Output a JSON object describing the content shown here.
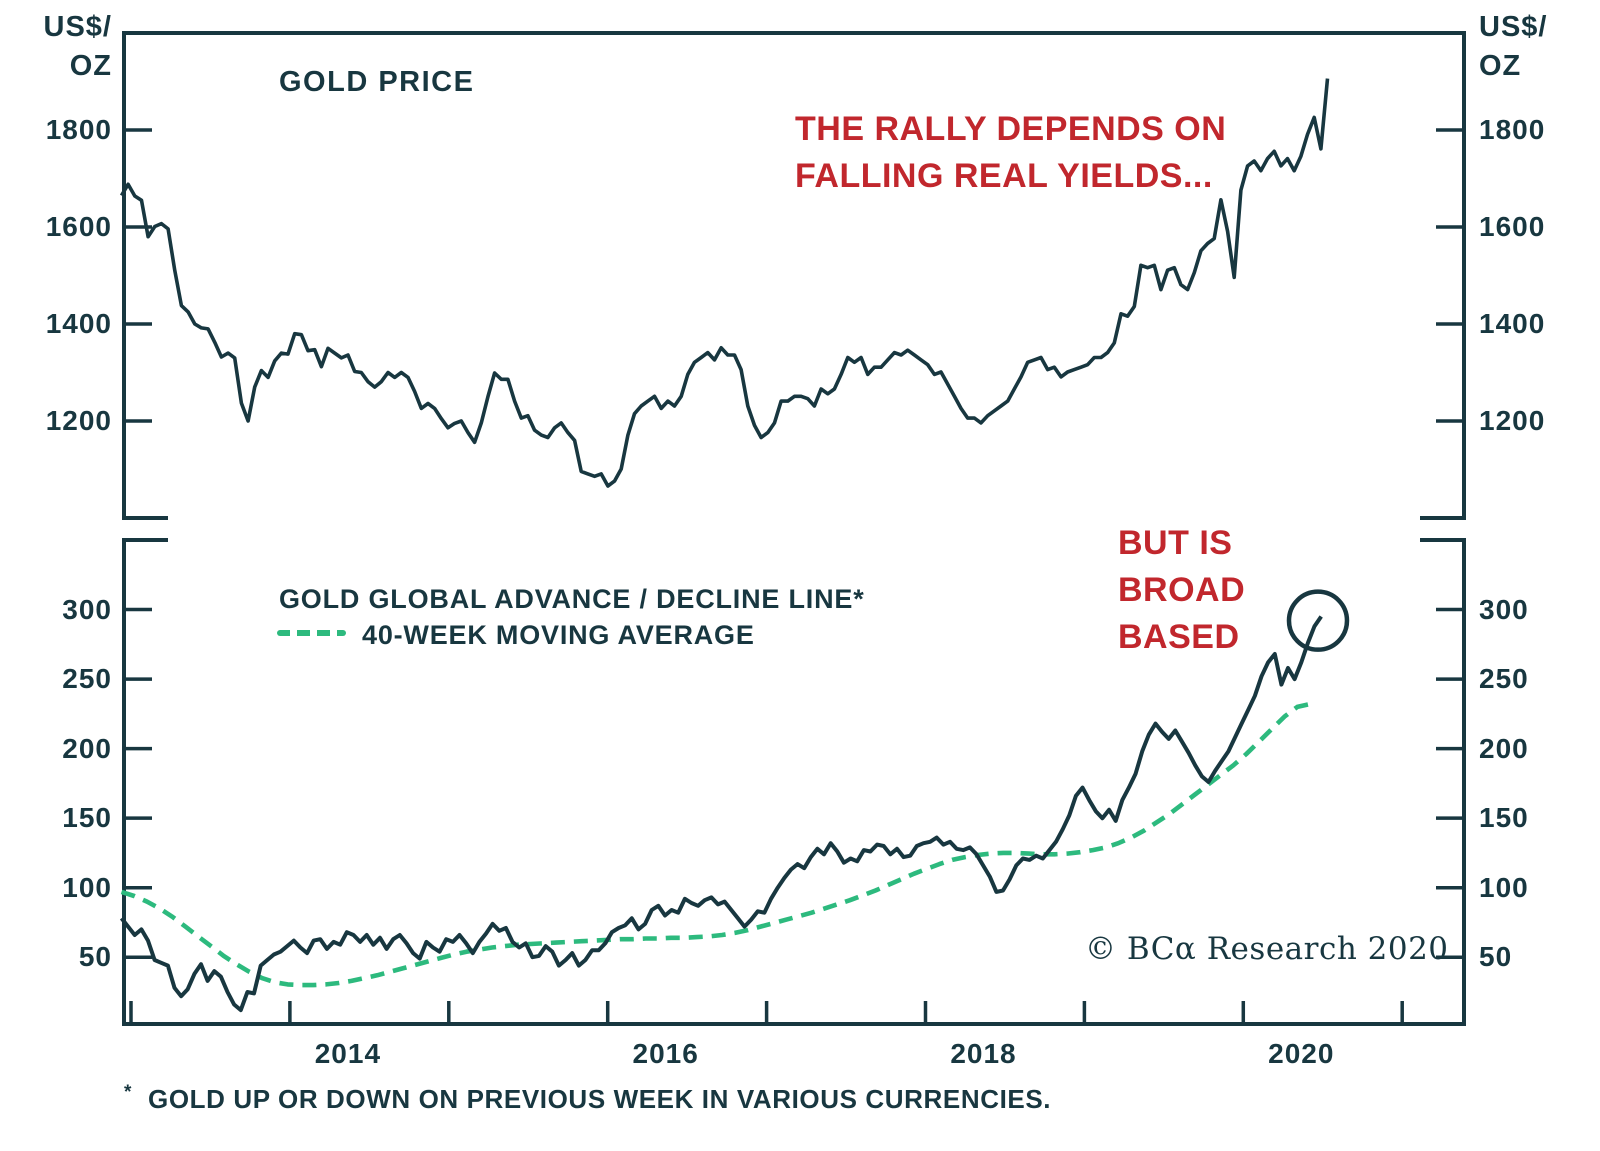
{
  "colors": {
    "dark_teal": "#183740",
    "accent_red": "#C1272D",
    "ma_green": "#2DBA7E",
    "background": "#ffffff"
  },
  "footnote": {
    "marker": "*",
    "text": "GOLD UP OR DOWN ON PREVIOUS WEEK IN VARIOUS CURRENCIES."
  },
  "copyright": "© BCα Research 2020",
  "chart_data": [
    {
      "type": "line",
      "title": "GOLD PRICE",
      "unit_label": [
        "US$/",
        "OZ"
      ],
      "annotation": {
        "lines": [
          "THE RALLY DEPENDS ON",
          "FALLING REAL YIELDS..."
        ],
        "color": "#C1272D"
      },
      "ylim": [
        1000,
        2000
      ],
      "yticks": [
        1800,
        1600,
        1400,
        1200
      ],
      "grid": false,
      "x_start": 2012.94,
      "x_end": 2020.53,
      "series": [
        {
          "name": "GOLD PRICE",
          "color": "#183740",
          "style": "solid",
          "values": [
            1665,
            1688,
            1664,
            1655,
            1580,
            1601,
            1607,
            1596,
            1510,
            1438,
            1425,
            1400,
            1392,
            1390,
            1362,
            1332,
            1340,
            1330,
            1237,
            1200,
            1270,
            1304,
            1290,
            1324,
            1340,
            1338,
            1380,
            1378,
            1345,
            1347,
            1312,
            1350,
            1340,
            1330,
            1336,
            1302,
            1300,
            1281,
            1270,
            1281,
            1300,
            1290,
            1300,
            1290,
            1261,
            1226,
            1236,
            1226,
            1205,
            1186,
            1195,
            1200,
            1176,
            1156,
            1196,
            1250,
            1299,
            1286,
            1286,
            1241,
            1206,
            1211,
            1181,
            1171,
            1166,
            1186,
            1196,
            1176,
            1160,
            1096,
            1091,
            1086,
            1091,
            1066,
            1076,
            1101,
            1171,
            1215,
            1231,
            1241,
            1251,
            1226,
            1241,
            1231,
            1251,
            1296,
            1321,
            1331,
            1341,
            1326,
            1351,
            1336,
            1336,
            1306,
            1231,
            1191,
            1166,
            1176,
            1196,
            1241,
            1241,
            1251,
            1251,
            1246,
            1231,
            1266,
            1256,
            1266,
            1296,
            1331,
            1321,
            1331,
            1296,
            1311,
            1311,
            1326,
            1341,
            1336,
            1346,
            1336,
            1326,
            1316,
            1296,
            1301,
            1276,
            1251,
            1226,
            1206,
            1206,
            1196,
            1211,
            1221,
            1231,
            1241,
            1266,
            1291,
            1321,
            1326,
            1331,
            1306,
            1311,
            1291,
            1301,
            1306,
            1311,
            1316,
            1331,
            1331,
            1341,
            1361,
            1421,
            1416,
            1436,
            1521,
            1516,
            1521,
            1471,
            1511,
            1516,
            1481,
            1471,
            1506,
            1551,
            1566,
            1576,
            1656,
            1591,
            1496,
            1676,
            1726,
            1736,
            1716,
            1741,
            1756,
            1726,
            1741,
            1716,
            1746,
            1791,
            1826,
            1761,
            1906
          ]
        }
      ]
    },
    {
      "type": "line",
      "legend": {
        "series1": "GOLD GLOBAL ADVANCE / DECLINE LINE*",
        "series2": "40-WEEK MOVING AVERAGE"
      },
      "annotation": {
        "lines": [
          "BUT IS",
          "BROAD",
          "BASED"
        ],
        "color": "#C1272D"
      },
      "ylim": [
        0,
        350
      ],
      "yticks": [
        300,
        250,
        200,
        150,
        100,
        50
      ],
      "xticks": [
        2013,
        2014,
        2015,
        2016,
        2017,
        2018,
        2019,
        2020,
        2021
      ],
      "xtick_labels": [
        "2014",
        "2016",
        "2018",
        "2020"
      ],
      "grid": false,
      "circle_annotation": {
        "x_year": 2020.47,
        "value": 292,
        "radius_px": 29
      },
      "series": [
        {
          "name": "GOLD GLOBAL ADVANCE / DECLINE LINE",
          "color": "#183740",
          "style": "solid",
          "x_start": 2012.94,
          "x_end": 2020.49,
          "values": [
            78,
            72,
            66,
            70,
            62,
            48,
            46,
            44,
            28,
            22,
            27,
            38,
            45,
            33,
            40,
            36,
            25,
            16,
            12,
            25,
            24,
            44,
            48,
            52,
            54,
            58,
            62,
            57,
            53,
            62,
            63,
            56,
            61,
            59,
            68,
            66,
            61,
            66,
            59,
            64,
            56,
            63,
            66,
            60,
            53,
            49,
            61,
            57,
            54,
            63,
            61,
            66,
            60,
            53,
            61,
            67,
            74,
            69,
            71,
            61,
            57,
            60,
            50,
            51,
            58,
            54,
            44,
            48,
            53,
            44,
            48,
            55,
            55,
            60,
            68,
            71,
            73,
            78,
            70,
            74,
            84,
            87,
            80,
            84,
            82,
            92,
            89,
            87,
            91,
            93,
            88,
            90,
            84,
            78,
            72,
            77,
            83,
            82,
            92,
            100,
            107,
            113,
            117,
            114,
            122,
            128,
            124,
            132,
            126,
            118,
            121,
            119,
            127,
            126,
            131,
            130,
            124,
            128,
            122,
            123,
            130,
            132,
            133,
            136,
            131,
            133,
            128,
            127,
            129,
            124,
            116,
            108,
            97,
            98,
            106,
            116,
            121,
            120,
            123,
            121,
            127,
            133,
            142,
            152,
            166,
            172,
            163,
            155,
            150,
            156,
            148,
            163,
            172,
            182,
            198,
            210,
            218,
            212,
            207,
            213,
            205,
            197,
            188,
            180,
            176,
            184,
            191,
            198,
            208,
            218,
            228,
            238,
            252,
            262,
            268,
            246,
            258,
            250,
            262,
            276,
            288,
            295
          ]
        },
        {
          "name": "40-WEEK MOVING AVERAGE",
          "color": "#2DBA7E",
          "style": "dashed",
          "x_start": 2012.94,
          "x_end": 2020.42,
          "values": [
            97,
            94,
            90,
            85,
            79,
            72,
            65,
            58,
            51,
            45,
            39.5,
            35,
            32,
            30.5,
            30,
            30,
            30.5,
            31.5,
            33,
            35,
            37,
            39.5,
            42,
            44.5,
            47,
            49.5,
            52,
            54,
            55.5,
            57,
            58,
            59,
            59.5,
            60,
            60.5,
            61,
            61.5,
            62,
            62.5,
            63,
            63,
            63.5,
            63.5,
            64,
            64,
            64.5,
            65,
            66,
            67.5,
            69.5,
            72,
            74.5,
            77,
            79.5,
            82,
            85,
            88,
            91,
            94.5,
            98,
            102,
            106,
            110,
            113.5,
            117,
            120,
            122,
            123.5,
            124.5,
            125,
            125,
            124.5,
            124,
            124,
            124.5,
            125.5,
            127,
            129,
            132,
            136,
            141,
            147,
            153,
            160,
            167,
            174,
            181,
            188,
            196,
            205,
            214,
            223,
            230,
            232
          ]
        }
      ]
    }
  ]
}
